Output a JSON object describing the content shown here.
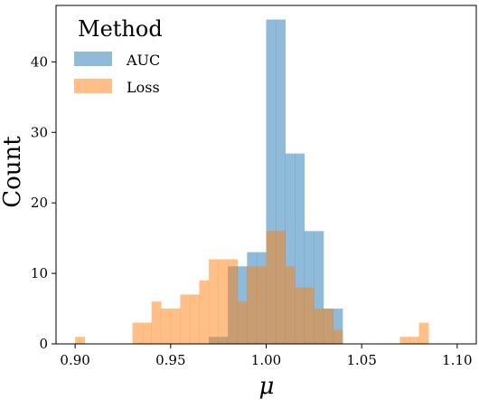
{
  "chart_data": {
    "type": "histogram",
    "xlabel": "μ",
    "ylabel": "Count",
    "xlim": [
      0.89,
      1.11
    ],
    "ylim": [
      0,
      48
    ],
    "xticks": [
      0.9,
      0.95,
      1.0,
      1.05,
      1.1
    ],
    "xtick_labels": [
      "0.90",
      "0.95",
      "1.00",
      "1.05",
      "1.10"
    ],
    "yticks": [
      0,
      10,
      20,
      30,
      40
    ],
    "ytick_labels": [
      "0",
      "10",
      "20",
      "30",
      "40"
    ],
    "bin_width": 0.005,
    "legend": {
      "title": "Method",
      "placement": "top-left"
    },
    "series": [
      {
        "name": "AUC",
        "color": "#1f77b4",
        "opacity": 0.5,
        "bins": [
          {
            "x": 0.97,
            "count": 1
          },
          {
            "x": 0.975,
            "count": 1
          },
          {
            "x": 0.98,
            "count": 11
          },
          {
            "x": 0.985,
            "count": 11
          },
          {
            "x": 0.99,
            "count": 13
          },
          {
            "x": 0.995,
            "count": 13
          },
          {
            "x": 1.0,
            "count": 46
          },
          {
            "x": 1.005,
            "count": 46
          },
          {
            "x": 1.01,
            "count": 27
          },
          {
            "x": 1.015,
            "count": 27
          },
          {
            "x": 1.02,
            "count": 16
          },
          {
            "x": 1.025,
            "count": 16
          },
          {
            "x": 1.03,
            "count": 5
          },
          {
            "x": 1.035,
            "count": 5
          }
        ]
      },
      {
        "name": "Loss",
        "color": "#ff7f0e",
        "opacity": 0.5,
        "bins": [
          {
            "x": 0.9,
            "count": 1
          },
          {
            "x": 0.93,
            "count": 3
          },
          {
            "x": 0.935,
            "count": 3
          },
          {
            "x": 0.94,
            "count": 6
          },
          {
            "x": 0.945,
            "count": 5
          },
          {
            "x": 0.95,
            "count": 5
          },
          {
            "x": 0.955,
            "count": 7
          },
          {
            "x": 0.96,
            "count": 7
          },
          {
            "x": 0.965,
            "count": 9
          },
          {
            "x": 0.97,
            "count": 12
          },
          {
            "x": 0.975,
            "count": 12
          },
          {
            "x": 0.98,
            "count": 12
          },
          {
            "x": 0.985,
            "count": 6
          },
          {
            "x": 0.99,
            "count": 11
          },
          {
            "x": 0.995,
            "count": 11
          },
          {
            "x": 1.0,
            "count": 16
          },
          {
            "x": 1.005,
            "count": 16
          },
          {
            "x": 1.01,
            "count": 11
          },
          {
            "x": 1.015,
            "count": 8
          },
          {
            "x": 1.02,
            "count": 8
          },
          {
            "x": 1.025,
            "count": 5
          },
          {
            "x": 1.03,
            "count": 5
          },
          {
            "x": 1.035,
            "count": 2
          },
          {
            "x": 1.07,
            "count": 1
          },
          {
            "x": 1.075,
            "count": 1
          },
          {
            "x": 1.08,
            "count": 3
          }
        ]
      }
    ]
  }
}
